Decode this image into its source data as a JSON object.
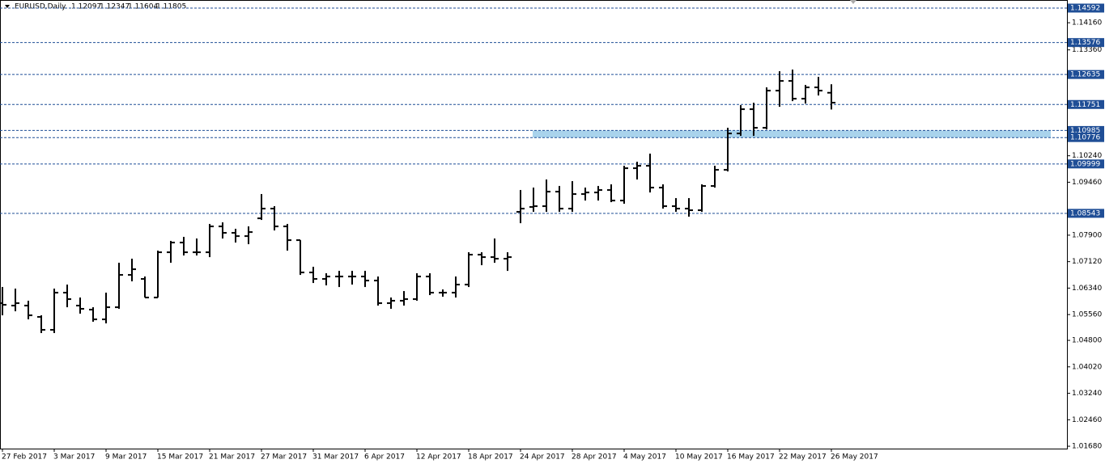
{
  "chart_data": {
    "type": "ohlc",
    "title": "EURUSD,Daily",
    "categories": [
      "27 Feb 2017",
      null,
      null,
      null,
      "3 Mar 2017",
      null,
      null,
      null,
      "9 Mar 2017",
      null,
      null,
      null,
      "15 Mar 2017",
      null,
      null,
      null,
      "21 Mar 2017",
      null,
      null,
      null,
      "27 Mar 2017",
      null,
      null,
      null,
      "31 Mar 2017",
      null,
      null,
      null,
      "6 Apr 2017",
      null,
      null,
      null,
      "12 Apr 2017",
      null,
      null,
      null,
      "18 Apr 2017",
      null,
      null,
      null,
      "24 Apr 2017",
      null,
      null,
      null,
      "28 Apr 2017",
      null,
      null,
      null,
      "4 May 2017",
      null,
      null,
      null,
      "10 May 2017",
      null,
      null,
      null,
      "16 May 2017",
      null,
      null,
      null,
      "22 May 2017",
      null,
      null,
      null,
      "26 May 2017"
    ],
    "open": [
      1.05896,
      1.05824,
      1.05824,
      1.05491,
      1.0511,
      1.06205,
      1.05824,
      1.05705,
      1.05419,
      1.05776,
      1.06729,
      1.0661,
      1.06062,
      1.07396,
      1.07682,
      1.07396,
      1.07396,
      1.08158,
      1.07968,
      1.07872,
      1.08396,
      1.08682,
      1.08158,
      1.07753,
      1.06801,
      1.0661,
      1.06681,
      1.06681,
      1.06681,
      1.06562,
      1.05896,
      1.05967,
      1.06015,
      1.06681,
      1.06205,
      1.06205,
      1.06443,
      1.07325,
      1.07253,
      1.07206,
      1.08587,
      1.0873,
      1.08754,
      1.09182,
      1.08682,
      1.09111,
      1.09158,
      1.0923,
      1.0892,
      1.09873,
      1.09944,
      1.09301,
      1.08754,
      1.08682,
      1.08635,
      1.09349,
      1.09825,
      1.10897,
      1.11612,
      1.11064,
      1.12159,
      1.12445,
      1.11921,
      1.12255,
      1.12097
    ],
    "high": [
      1.06372,
      1.06324,
      1.05967,
      1.05538,
      1.06324,
      1.06443,
      1.06062,
      1.05776,
      1.06205,
      1.07086,
      1.07206,
      1.06681,
      1.07444,
      1.0773,
      1.07849,
      1.07801,
      1.0823,
      1.08277,
      1.08087,
      1.08158,
      1.09111,
      1.08754,
      1.0823,
      1.07753,
      1.06967,
      1.06777,
      1.06848,
      1.06848,
      1.06848,
      1.06681,
      1.06062,
      1.06253,
      1.06777,
      1.06777,
      1.063,
      1.06681,
      1.07396,
      1.07396,
      1.07801,
      1.07396,
      1.0923,
      1.09301,
      1.0954,
      1.09349,
      1.09492,
      1.09301,
      1.09349,
      1.09397,
      1.09944,
      1.10063,
      1.10302,
      1.09397,
      1.08992,
      1.08992,
      1.09397,
      1.09944,
      1.11064,
      1.11731,
      1.11802,
      1.12255,
      1.12731,
      1.12779,
      1.12326,
      1.12564,
      1.12347
    ],
    "low": [
      1.05538,
      1.05657,
      1.05419,
      1.05015,
      1.05015,
      1.05776,
      1.05586,
      1.05348,
      1.053,
      1.05729,
      1.06539,
      1.06062,
      1.06062,
      1.07086,
      1.07301,
      1.07301,
      1.07253,
      1.07801,
      1.07682,
      1.07634,
      1.08349,
      1.08039,
      1.07444,
      1.06729,
      1.06491,
      1.0642,
      1.06372,
      1.06443,
      1.06372,
      1.05824,
      1.05729,
      1.05824,
      1.05967,
      1.06134,
      1.06086,
      1.06062,
      1.06372,
      1.07015,
      1.07086,
      1.06848,
      1.08253,
      1.08587,
      1.08587,
      1.08587,
      1.08587,
      1.0892,
      1.0892,
      1.08873,
      1.08825,
      1.0954,
      1.09158,
      1.08682,
      1.08587,
      1.08444,
      1.08587,
      1.09301,
      1.09778,
      1.10826,
      1.10826,
      1.11016,
      1.11683,
      1.1185,
      1.11778,
      1.12016,
      1.11604
    ],
    "close": [
      1.05848,
      1.05896,
      1.05538,
      1.0511,
      1.06205,
      1.06015,
      1.05729,
      1.05419,
      1.05776,
      1.06729,
      1.06896,
      1.06062,
      1.07396,
      1.07682,
      1.07396,
      1.07396,
      1.08158,
      1.07968,
      1.07872,
      1.07991,
      1.08682,
      1.08158,
      1.07753,
      1.06801,
      1.0661,
      1.06681,
      1.06681,
      1.06681,
      1.06562,
      1.05896,
      1.05967,
      1.06015,
      1.06681,
      1.06205,
      1.06205,
      1.06443,
      1.07325,
      1.07253,
      1.07206,
      1.07253,
      1.08682,
      1.08754,
      1.09182,
      1.08682,
      1.09111,
      1.09158,
      1.0923,
      1.0892,
      1.09873,
      1.09944,
      1.09301,
      1.08754,
      1.08682,
      1.08635,
      1.09349,
      1.09825,
      1.10897,
      1.11612,
      1.11064,
      1.12159,
      1.12445,
      1.11921,
      1.12255,
      1.12159,
      1.11805
    ],
    "color": "#000000",
    "levels": [
      1.14592,
      1.13576,
      1.12635,
      1.11751,
      1.10985,
      1.10776,
      1.09999,
      1.08543
    ],
    "level_color": "#1f4e96",
    "zone": [
      4,
      5
    ],
    "zone_color": "#a9d3ec",
    "ylim": [
      1.0161,
      1.1483
    ],
    "yticks": [
      {
        "value": 1.1416,
        "label": "1.14160"
      },
      {
        "value": 1.1336,
        "label": "1.13360"
      },
      {
        "value": 1.1024,
        "label": "1.10240"
      },
      {
        "value": 1.0946,
        "label": "1.09460"
      },
      {
        "value": 1.079,
        "label": "1.07900"
      },
      {
        "value": 1.0712,
        "label": "1.07120"
      },
      {
        "value": 1.0634,
        "label": "1.06340"
      },
      {
        "value": 1.0556,
        "label": "1.05560"
      },
      {
        "value": 1.048,
        "label": "1.04800"
      },
      {
        "value": 1.0402,
        "label": "1.04020"
      },
      {
        "value": 1.0324,
        "label": "1.03240"
      },
      {
        "value": 1.0246,
        "label": "1.02460"
      },
      {
        "value": 1.0168,
        "label": "1.01680"
      }
    ],
    "grid": false
  }
}
